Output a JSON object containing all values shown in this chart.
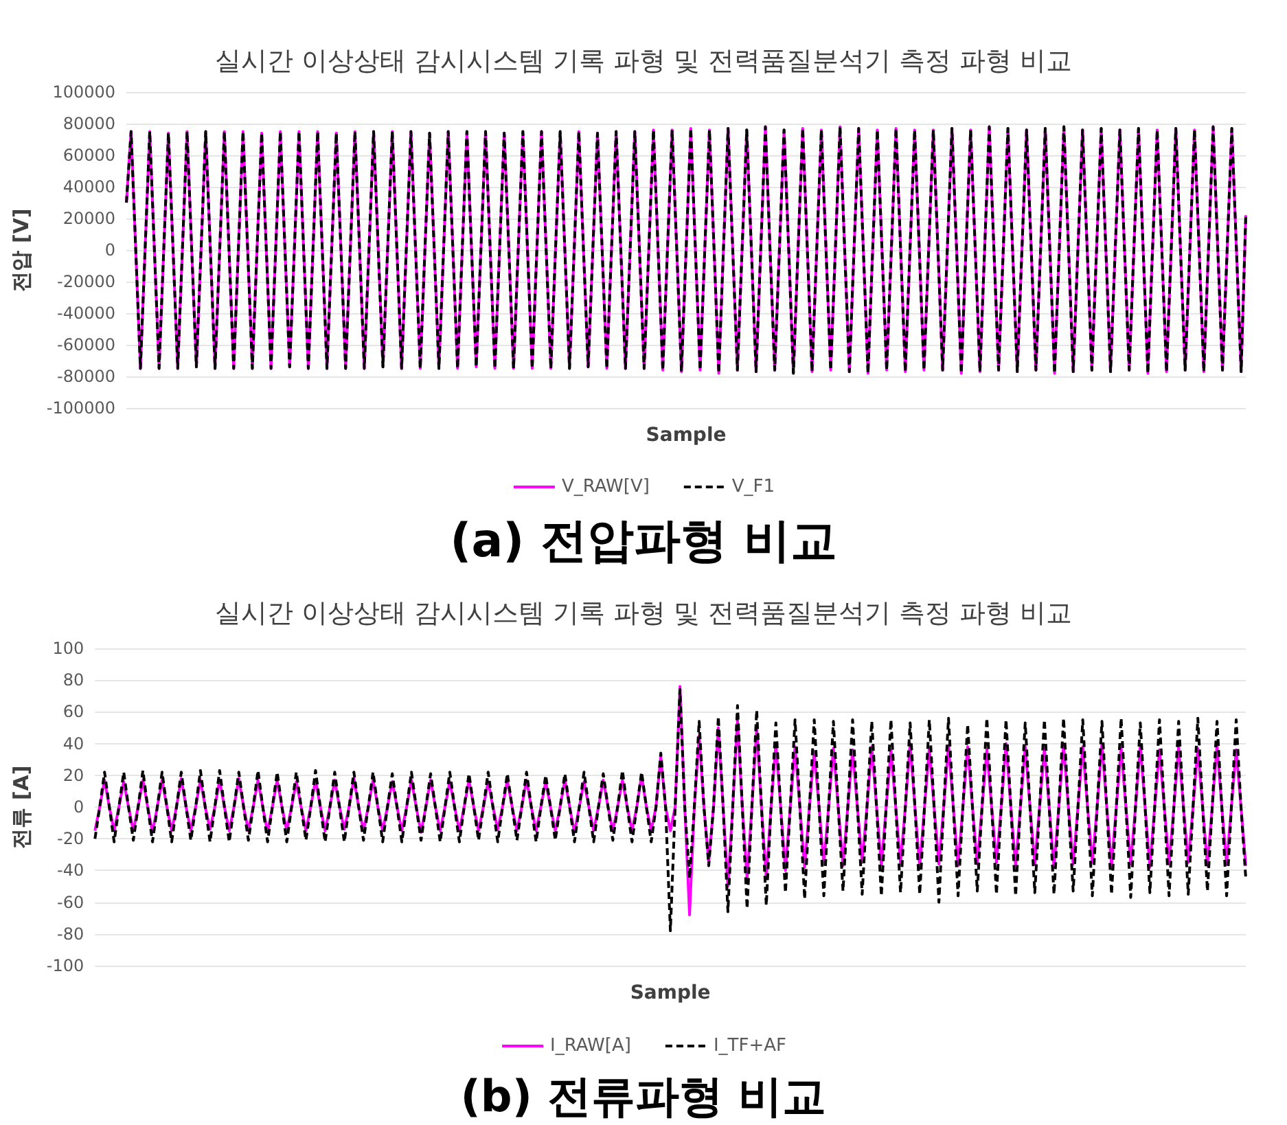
{
  "chart_data": [
    {
      "type": "line",
      "title": "실시간 이상상태 감시시스템 기록 파형 및 전력품질분석기 측정 파형 비교",
      "xlabel": "Sample",
      "ylabel": "전압 [V]",
      "annotations": [
        "(a) 전압파형 비교"
      ],
      "categories": [
        null,
        null,
        null,
        null,
        null,
        null,
        null,
        null,
        null,
        null,
        null,
        null,
        null,
        null,
        null,
        null,
        null,
        null,
        null,
        null,
        null,
        null,
        null,
        null,
        null,
        null,
        null,
        null,
        null,
        null,
        null,
        null,
        null,
        null,
        null,
        null,
        null,
        null,
        null,
        null,
        null,
        null,
        null,
        null,
        null,
        null,
        null,
        null,
        null,
        null,
        null,
        null,
        null,
        null,
        null,
        null,
        null,
        null,
        null,
        null,
        null,
        null,
        null,
        null,
        null,
        null,
        null,
        null,
        null,
        null,
        null,
        null,
        null,
        null,
        null,
        null,
        null,
        null,
        null,
        null,
        null,
        null,
        null,
        null,
        null,
        null,
        null,
        null,
        null,
        null,
        null,
        null,
        null,
        null,
        null,
        null,
        null,
        null,
        null,
        null,
        null,
        null,
        null,
        null,
        null,
        null,
        null,
        null,
        null,
        null,
        null,
        null,
        null,
        null,
        null,
        null,
        null,
        null,
        null,
        null,
        null,
        null,
        null,
        null,
        null,
        null,
        null,
        null,
        null,
        null,
        null,
        null,
        null,
        null,
        null,
        null,
        null,
        null,
        null,
        null,
        null,
        null,
        null,
        null,
        null,
        null,
        null,
        null,
        null,
        null,
        null,
        null,
        null,
        null,
        null,
        null,
        null,
        null,
        null,
        null,
        null,
        null,
        null,
        null,
        null,
        null,
        null,
        null,
        null,
        null,
        null,
        null,
        null,
        null,
        null,
        null,
        null,
        null,
        null,
        null,
        null,
        null,
        null,
        null,
        null,
        null,
        null,
        null,
        null,
        null,
        null,
        null,
        null,
        null,
        null,
        null,
        null,
        null,
        null,
        null,
        null,
        null,
        null,
        null,
        null,
        null,
        null,
        null,
        null,
        null,
        null,
        null,
        null,
        null,
        null,
        null,
        null,
        null,
        null,
        null,
        null,
        null,
        null,
        null,
        null,
        null,
        null,
        null,
        null,
        null,
        null,
        null,
        null,
        null,
        null,
        null,
        null,
        null,
        null,
        null,
        null
      ],
      "series": [
        {
          "name": "V_RAW[V]",
          "color": "#ff00ff",
          "line_style": "solid",
          "values": [
            30000,
            75000,
            0,
            -75000,
            0,
            75000,
            0,
            -75000,
            0,
            74000,
            0,
            -75000,
            0,
            75000,
            0,
            -74000,
            0,
            75000,
            0,
            -75000,
            0,
            75000,
            0,
            -75000,
            0,
            75000,
            0,
            -75000,
            0,
            74000,
            0,
            -75000,
            0,
            75000,
            0,
            -74000,
            0,
            75000,
            0,
            -75000,
            0,
            75000,
            0,
            -75000,
            0,
            74000,
            0,
            -75000,
            0,
            75000,
            0,
            -75000,
            0,
            75000,
            0,
            -74000,
            0,
            75000,
            0,
            -75000,
            0,
            75000,
            0,
            -75000,
            0,
            74000,
            0,
            -75000,
            0,
            75000,
            0,
            -75000,
            0,
            75000,
            0,
            -74000,
            0,
            75000,
            0,
            -75000,
            0,
            74000,
            0,
            -75000,
            0,
            75000,
            0,
            -75000,
            0,
            75000,
            0,
            -75000,
            0,
            75000,
            0,
            -75000,
            0,
            75000,
            0,
            -74000,
            0,
            74000,
            0,
            -75000,
            0,
            75000,
            0,
            -75000,
            0,
            75000,
            0,
            -75000,
            0,
            76000,
            0,
            -76000,
            0,
            76000,
            0,
            -77000,
            0,
            77000,
            0,
            -76000,
            0,
            76000,
            0,
            -78000,
            0,
            77000,
            0,
            -76000,
            0,
            76000,
            0,
            -77000,
            0,
            78000,
            0,
            -76000,
            0,
            76000,
            0,
            -78000,
            0,
            77000,
            0,
            -77000,
            0,
            76000,
            0,
            -76000,
            0,
            78000,
            0,
            -77000,
            0,
            77000,
            0,
            -78000,
            0,
            76000,
            0,
            -76000,
            0,
            77000,
            0,
            -77000,
            0,
            76000,
            0,
            -76000,
            0,
            76000,
            0,
            -76000,
            0,
            77000,
            0,
            -78000,
            0,
            76000,
            0,
            -77000,
            0,
            78000,
            0,
            -76000,
            0,
            77000,
            0,
            -77000,
            0,
            76000,
            0,
            -76000,
            0,
            77000,
            0,
            -78000,
            0,
            78000,
            0,
            -77000,
            0,
            76000,
            0,
            -76000,
            0,
            77000,
            0,
            -77000,
            0,
            76000,
            0,
            -76000,
            0,
            77000,
            0,
            -78000,
            0,
            76000,
            0,
            -77000,
            0,
            77000,
            0,
            -76000,
            0,
            76000,
            0,
            -77000,
            0,
            78000,
            0,
            -76000,
            0,
            77000,
            0,
            -77000,
            22000
          ]
        },
        {
          "name": "V_F1",
          "color": "#000000",
          "line_style": "dashed",
          "values": [
            30000,
            75000,
            0,
            -75000,
            0,
            75000,
            0,
            -75000,
            0,
            74000,
            0,
            -75000,
            0,
            75000,
            0,
            -74000,
            0,
            75000,
            0,
            -75000,
            0,
            75000,
            0,
            -75000,
            0,
            75000,
            0,
            -75000,
            0,
            74000,
            0,
            -75000,
            0,
            75000,
            0,
            -74000,
            0,
            75000,
            0,
            -75000,
            0,
            75000,
            0,
            -75000,
            0,
            74000,
            0,
            -75000,
            0,
            75000,
            0,
            -75000,
            0,
            75000,
            0,
            -74000,
            0,
            75000,
            0,
            -75000,
            0,
            75000,
            0,
            -75000,
            0,
            74000,
            0,
            -75000,
            0,
            75000,
            0,
            -75000,
            0,
            75000,
            0,
            -74000,
            0,
            75000,
            0,
            -75000,
            0,
            74000,
            0,
            -75000,
            0,
            75000,
            0,
            -75000,
            0,
            75000,
            0,
            -75000,
            0,
            75000,
            0,
            -75000,
            0,
            75000,
            0,
            -74000,
            0,
            74000,
            0,
            -75000,
            0,
            75000,
            0,
            -75000,
            0,
            75000,
            0,
            -75000,
            0,
            76000,
            0,
            -76000,
            0,
            76000,
            0,
            -77000,
            0,
            77000,
            0,
            -76000,
            0,
            76000,
            0,
            -78000,
            0,
            77000,
            0,
            -76000,
            0,
            76000,
            0,
            -77000,
            0,
            78000,
            0,
            -76000,
            0,
            76000,
            0,
            -78000,
            0,
            77000,
            0,
            -77000,
            0,
            76000,
            0,
            -76000,
            0,
            78000,
            0,
            -77000,
            0,
            77000,
            0,
            -78000,
            0,
            76000,
            0,
            -76000,
            0,
            77000,
            0,
            -77000,
            0,
            76000,
            0,
            -76000,
            0,
            76000,
            0,
            -76000,
            0,
            77000,
            0,
            -78000,
            0,
            76000,
            0,
            -77000,
            0,
            78000,
            0,
            -76000,
            0,
            77000,
            0,
            -77000,
            0,
            76000,
            0,
            -76000,
            0,
            77000,
            0,
            -78000,
            0,
            78000,
            0,
            -77000,
            0,
            76000,
            0,
            -76000,
            0,
            77000,
            0,
            -77000,
            0,
            76000,
            0,
            -76000,
            0,
            77000,
            0,
            -78000,
            0,
            76000,
            0,
            -77000,
            0,
            77000,
            0,
            -76000,
            0,
            76000,
            0,
            -77000,
            0,
            78000,
            0,
            -76000,
            0,
            77000,
            0,
            -77000,
            22000
          ]
        }
      ],
      "ylim": [
        -100000,
        100000
      ],
      "yticks": [
        -100000,
        -80000,
        -60000,
        -40000,
        -20000,
        0,
        20000,
        40000,
        60000,
        80000,
        100000
      ],
      "grid": "y",
      "legend": "bottom"
    },
    {
      "type": "line",
      "title": "실시간 이상상태 감시시스템 기록 파형 및 전력품질분석기 측정 파형 비교",
      "xlabel": "Sample",
      "ylabel": "전류 [A]",
      "annotations": [
        "(b) 전류파형 비교"
      ],
      "categories": [
        null,
        null,
        null,
        null,
        null,
        null,
        null,
        null,
        null,
        null,
        null,
        null,
        null,
        null,
        null,
        null,
        null,
        null,
        null,
        null,
        null,
        null,
        null,
        null,
        null,
        null,
        null,
        null,
        null,
        null,
        null,
        null,
        null,
        null,
        null,
        null,
        null,
        null,
        null,
        null,
        null,
        null,
        null,
        null,
        null,
        null,
        null,
        null,
        null,
        null,
        null,
        null,
        null,
        null,
        null,
        null,
        null,
        null,
        null,
        null,
        null,
        null,
        null,
        null,
        null,
        null,
        null,
        null,
        null,
        null,
        null,
        null,
        null,
        null,
        null,
        null,
        null,
        null,
        null,
        null,
        null,
        null,
        null,
        null,
        null,
        null,
        null,
        null,
        null,
        null,
        null,
        null,
        null,
        null,
        null,
        null,
        null,
        null,
        null,
        null,
        null,
        null,
        null,
        null,
        null,
        null,
        null,
        null,
        null,
        null,
        null,
        null,
        null,
        null,
        null,
        null,
        null,
        null,
        null,
        null,
        null,
        null,
        null,
        null,
        null,
        null,
        null,
        null,
        null,
        null,
        null,
        null,
        null,
        null,
        null,
        null,
        null,
        null,
        null,
        null,
        null,
        null,
        null,
        null,
        null,
        null,
        null,
        null,
        null,
        null,
        null,
        null,
        null,
        null,
        null,
        null,
        null,
        null,
        null,
        null,
        null,
        null,
        null,
        null,
        null,
        null,
        null,
        null,
        null,
        null,
        null,
        null,
        null,
        null,
        null,
        null,
        null,
        null,
        null,
        null,
        null,
        null,
        null,
        null,
        null,
        null,
        null,
        null,
        null,
        null,
        null,
        null,
        null,
        null,
        null,
        null,
        null,
        null,
        null,
        null,
        null,
        null,
        null,
        null,
        null,
        null,
        null,
        null,
        null,
        null,
        null,
        null,
        null,
        null,
        null,
        null,
        null,
        null,
        null,
        null,
        null,
        null,
        null,
        null,
        null,
        null,
        null,
        null,
        null,
        null,
        null,
        null,
        null,
        null,
        null,
        null,
        null,
        null,
        null,
        null,
        null
      ],
      "series": [
        {
          "name": "I_RAW[A]",
          "color": "#ff00ff",
          "line_style": "solid",
          "values": [
            -15,
            0,
            17,
            0,
            -15,
            0,
            16,
            0,
            -15,
            0,
            17,
            0,
            -16,
            0,
            17,
            0,
            -15,
            0,
            18,
            0,
            -15,
            0,
            17,
            0,
            -14,
            0,
            17,
            0,
            -15,
            0,
            18,
            0,
            -15,
            0,
            17,
            0,
            -16,
            0,
            17,
            0,
            -15,
            0,
            16,
            0,
            -15,
            0,
            17,
            0,
            -15,
            0,
            17,
            0,
            -14,
            0,
            18,
            0,
            -15,
            0,
            17,
            0,
            -15,
            0,
            16,
            0,
            -15,
            0,
            17,
            0,
            -16,
            0,
            17,
            0,
            -15,
            0,
            16,
            0,
            -15,
            0,
            17,
            0,
            -15,
            0,
            16,
            0,
            -14,
            0,
            17,
            0,
            -15,
            0,
            17,
            0,
            -15,
            0,
            16,
            0,
            -15,
            0,
            17,
            0,
            -16,
            0,
            16,
            0,
            -15,
            0,
            17,
            0,
            -15,
            0,
            17,
            0,
            -15,
            0,
            20,
            0,
            -15,
            0,
            32,
            0,
            -15,
            0,
            76,
            0,
            -68,
            0,
            45,
            0,
            -35,
            0,
            50,
            0,
            -50,
            0,
            55,
            0,
            -45,
            0,
            50,
            0,
            -45,
            0,
            40,
            0,
            -40,
            0,
            38,
            0,
            -38,
            0,
            35,
            0,
            -36,
            0,
            37,
            0,
            -37,
            0,
            36,
            0,
            -35,
            0,
            38,
            0,
            -37,
            0,
            36,
            0,
            -36,
            0,
            40,
            0,
            -38,
            0,
            37,
            0,
            -36,
            0,
            39,
            0,
            -37,
            0,
            38,
            0,
            -36,
            0,
            36,
            0,
            -35,
            0,
            40,
            0,
            -37,
            0,
            38,
            0,
            -36,
            0,
            37,
            0,
            -38,
            0,
            39,
            0,
            -36,
            0,
            38,
            0,
            -35,
            0,
            40,
            0,
            -37,
            0,
            37,
            0,
            -36,
            0,
            39,
            0,
            -38,
            0,
            36,
            0,
            -36,
            0,
            38,
            0,
            -35,
            0,
            37,
            0,
            -37,
            0,
            39,
            0,
            -36,
            0,
            36,
            0,
            -37
          ]
        },
        {
          "name": "I_TF+AF",
          "color": "#000000",
          "line_style": "dashed",
          "values": [
            -20,
            0,
            22,
            0,
            -22,
            0,
            22,
            0,
            -21,
            0,
            23,
            0,
            -22,
            0,
            22,
            0,
            -22,
            0,
            22,
            0,
            -21,
            0,
            23,
            0,
            -22,
            0,
            23,
            0,
            -22,
            0,
            22,
            0,
            -21,
            0,
            23,
            0,
            -22,
            0,
            22,
            0,
            -22,
            0,
            22,
            0,
            -21,
            0,
            23,
            0,
            -22,
            0,
            22,
            0,
            -22,
            0,
            22,
            0,
            -21,
            0,
            22,
            0,
            -22,
            0,
            21,
            0,
            -22,
            0,
            22,
            0,
            -21,
            0,
            21,
            0,
            -22,
            0,
            22,
            0,
            -22,
            0,
            21,
            0,
            -21,
            0,
            22,
            0,
            -22,
            0,
            21,
            0,
            -21,
            0,
            22,
            0,
            -22,
            0,
            20,
            0,
            -21,
            0,
            21,
            0,
            -22,
            0,
            22,
            0,
            -22,
            0,
            21,
            0,
            -21,
            0,
            23,
            0,
            -22,
            0,
            22,
            0,
            -22,
            0,
            34,
            0,
            -78,
            0,
            74,
            0,
            -45,
            0,
            54,
            0,
            -37,
            0,
            57,
            0,
            -66,
            0,
            64,
            0,
            -64,
            0,
            61,
            0,
            -62,
            0,
            53,
            0,
            -54,
            0,
            55,
            0,
            -58,
            0,
            55,
            0,
            -56,
            0,
            54,
            0,
            -53,
            0,
            55,
            0,
            -55,
            0,
            54,
            0,
            -56,
            0,
            55,
            0,
            -54,
            0,
            53,
            0,
            -55,
            0,
            55,
            0,
            -60,
            0,
            56,
            0,
            -56,
            0,
            52,
            0,
            -53,
            0,
            56,
            0,
            -55,
            0,
            55,
            0,
            -56,
            0,
            53,
            0,
            -54,
            0,
            55,
            0,
            -55,
            0,
            56,
            0,
            -53,
            0,
            55,
            0,
            -56,
            0,
            54,
            0,
            -55,
            0,
            56,
            0,
            -57,
            0,
            53,
            0,
            -54,
            0,
            55,
            0,
            -56,
            0,
            54,
            0,
            -55,
            0,
            56,
            0,
            -53,
            0,
            54,
            0,
            -56,
            0,
            55,
            0,
            -45
          ]
        }
      ],
      "ylim": [
        -100,
        100
      ],
      "yticks": [
        -100,
        -80,
        -60,
        -40,
        -20,
        0,
        20,
        40,
        60,
        80,
        100
      ],
      "grid": "y",
      "legend": "bottom"
    }
  ]
}
